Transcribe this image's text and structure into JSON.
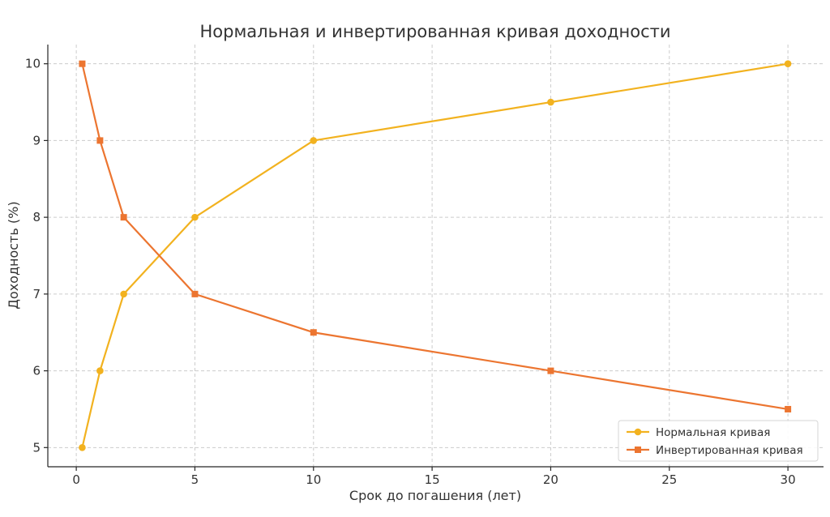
{
  "chart_data": {
    "type": "line",
    "title": "Нормальная и инвертированная кривая доходности",
    "xlabel": "Срок до погашения (лет)",
    "ylabel": "Доходность (%)",
    "xlim": [
      -1.2,
      31.5
    ],
    "ylim": [
      4.75,
      10.25
    ],
    "xticks": [
      0,
      5,
      10,
      15,
      20,
      25,
      30
    ],
    "yticks": [
      5,
      6,
      7,
      8,
      9,
      10
    ],
    "grid": true,
    "legend_position": "bottom-right",
    "series": [
      {
        "name": "Нормальная кривая",
        "color": "#F2B21F",
        "marker": "circle",
        "x": [
          0.25,
          1,
          2,
          5,
          10,
          20,
          30
        ],
        "y": [
          5,
          6,
          7,
          8,
          9,
          9.5,
          10
        ]
      },
      {
        "name": "Инвертированная кривая",
        "color": "#EC7530",
        "marker": "square",
        "x": [
          0.25,
          1,
          2,
          5,
          10,
          20,
          30
        ],
        "y": [
          10,
          9,
          8,
          7,
          6.5,
          6,
          5.5
        ]
      }
    ]
  }
}
